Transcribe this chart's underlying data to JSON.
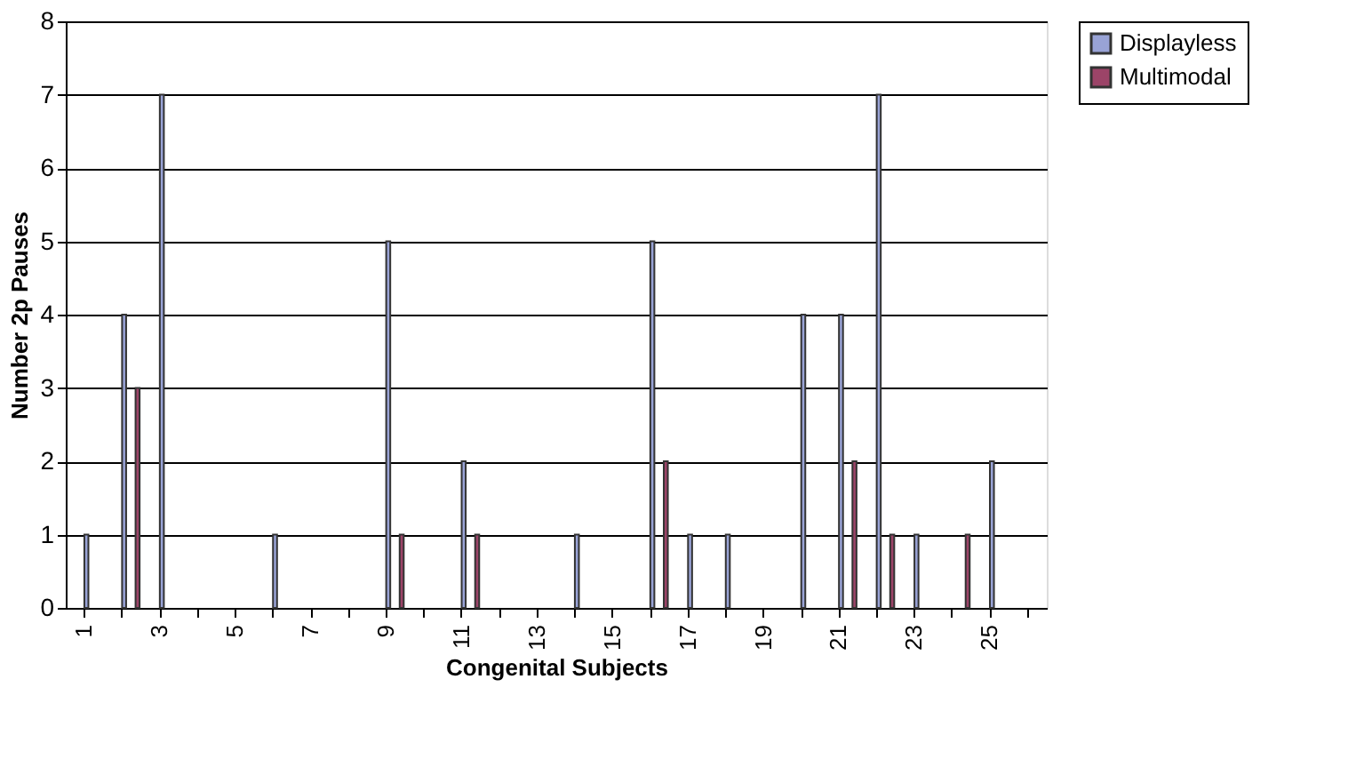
{
  "chart_data": {
    "type": "bar",
    "xlabel": "Congenital Subjects",
    "ylabel": "Number 2p Pauses",
    "categories": [
      "1",
      null,
      "3",
      null,
      "5",
      null,
      "7",
      null,
      "9",
      null,
      "11",
      null,
      "13",
      null,
      "15",
      null,
      "17",
      null,
      "19",
      null,
      "21",
      null,
      "23",
      null,
      "25",
      null
    ],
    "series": [
      {
        "name": "Displayless",
        "color": "#99a3d6",
        "values": [
          1,
          4,
          7,
          null,
          null,
          1,
          null,
          null,
          5,
          null,
          2,
          null,
          null,
          1,
          null,
          5,
          1,
          1,
          null,
          4,
          4,
          7,
          1,
          null,
          2,
          null
        ]
      },
      {
        "name": "Multimodal",
        "color": "#9c4468",
        "values": [
          null,
          3,
          null,
          null,
          null,
          null,
          null,
          null,
          1,
          null,
          1,
          null,
          null,
          null,
          null,
          2,
          null,
          null,
          null,
          null,
          2,
          1,
          null,
          1,
          null,
          null
        ]
      }
    ],
    "ylim": [
      0,
      8
    ],
    "yticks": [
      0,
      1,
      2,
      3,
      4,
      5,
      6,
      7,
      8
    ],
    "grid": "y",
    "legend": "right"
  }
}
